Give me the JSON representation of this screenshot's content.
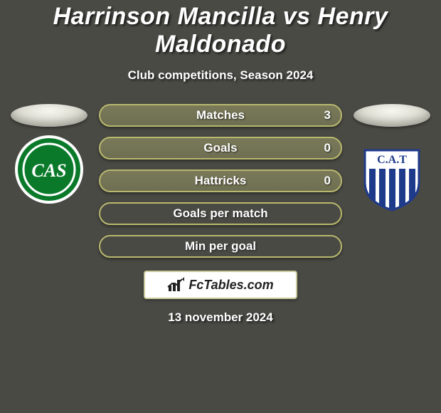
{
  "header": {
    "title": "Harrinson Mancilla vs Henry Maldonado",
    "subtitle": "Club competitions, Season 2024"
  },
  "stats": [
    {
      "label": "Matches",
      "value": "3",
      "has_value": true,
      "border_color": "#b8b86e",
      "filled": true
    },
    {
      "label": "Goals",
      "value": "0",
      "has_value": true,
      "border_color": "#b8b86e",
      "filled": true
    },
    {
      "label": "Hattricks",
      "value": "0",
      "has_value": true,
      "border_color": "#b8b86e",
      "filled": true
    },
    {
      "label": "Goals per match",
      "value": "",
      "has_value": false,
      "border_color": "#b8b86e",
      "filled": false
    },
    {
      "label": "Min per goal",
      "value": "",
      "has_value": false,
      "border_color": "#b8b86e",
      "filled": false
    }
  ],
  "left_club": {
    "name": "sarmiento-badge",
    "bg_color": "#0a7a2a",
    "ring_color": "#ffffff",
    "text": "CAS",
    "text_color": "#ffffff"
  },
  "right_club": {
    "name": "talleres-badge",
    "shield_fill": "#ffffff",
    "stripe_color": "#1e3a8a",
    "text": "C.A.T",
    "text_color": "#1e3a8a",
    "star_color": "#d4af37"
  },
  "brand": {
    "text": "FcTables.com",
    "icon_color": "#222222"
  },
  "footer": {
    "date": "13 november 2024"
  },
  "colors": {
    "page_bg": "#4a4a45",
    "pill_bg": "#6e6e52",
    "brand_border": "#c9c99a"
  }
}
